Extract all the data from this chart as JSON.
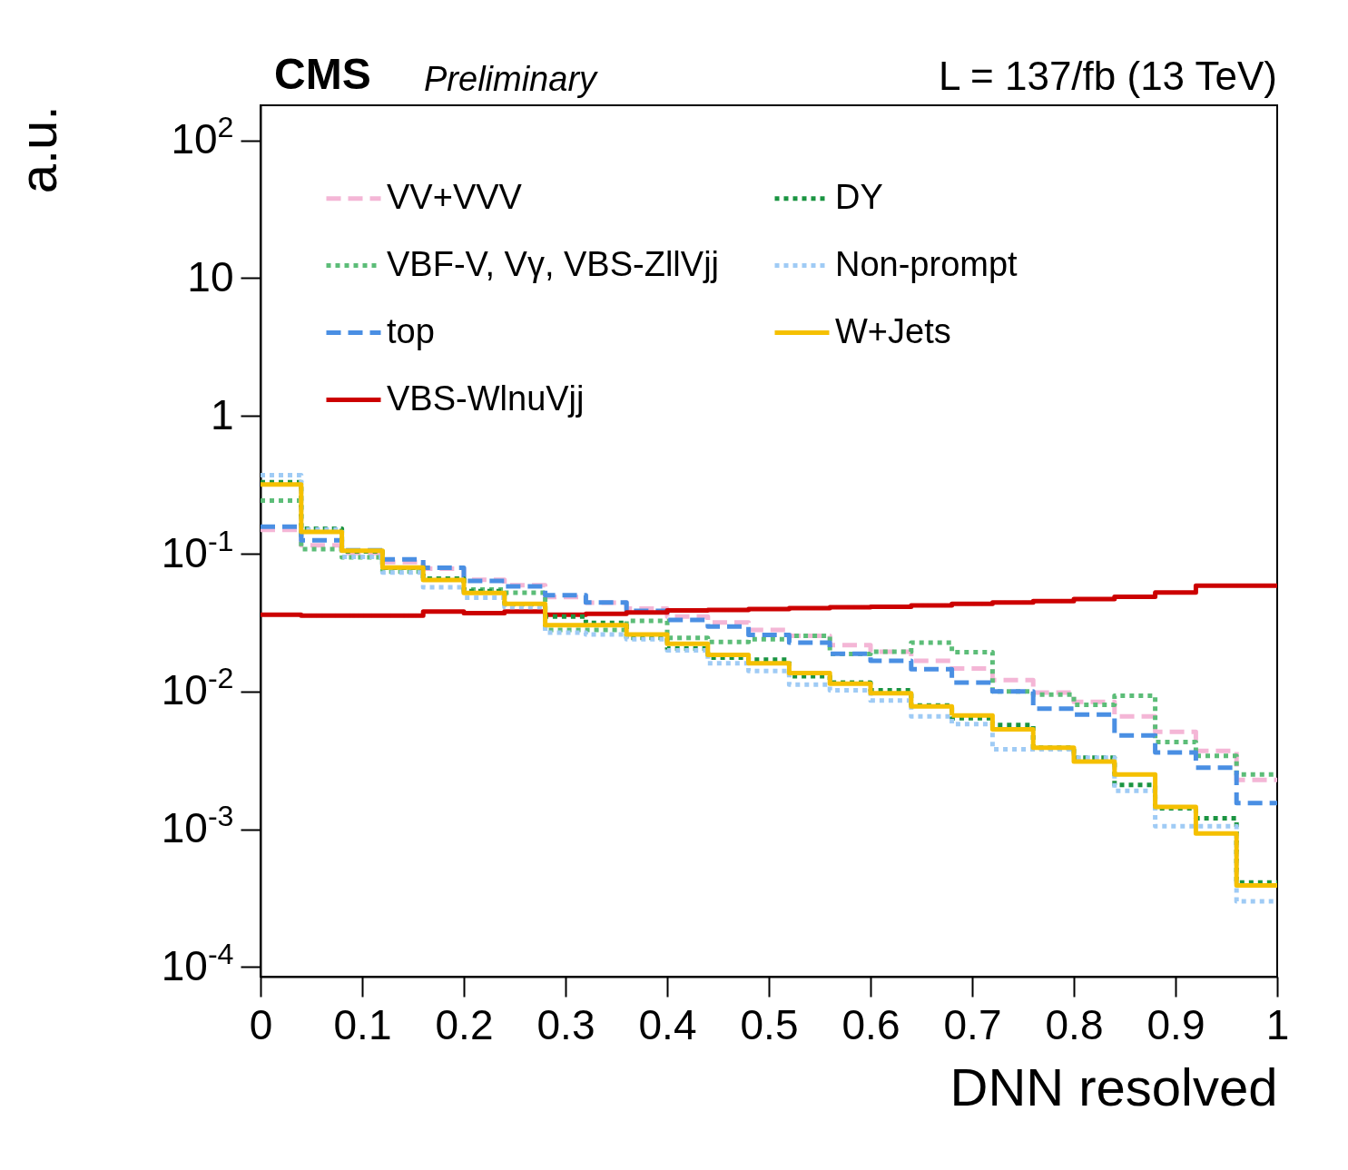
{
  "chart_data": {
    "type": "histogram",
    "title": "CMS",
    "subtitle": "Preliminary",
    "annotations": [
      "L = 137/fb (13 TeV)"
    ],
    "xlabel": "DNN resolved",
    "ylabel": "a.u.",
    "bins": [
      0,
      0.04,
      0.08,
      0.12,
      0.16,
      0.2,
      0.24,
      0.28,
      0.32,
      0.36,
      0.4,
      0.44,
      0.48,
      0.52,
      0.56,
      0.6,
      0.64,
      0.68,
      0.72,
      0.76,
      0.8,
      0.84,
      0.88,
      0.92,
      0.96,
      1
    ],
    "series": [
      {
        "name": "VV+VVV",
        "color": "#f4b6d6",
        "line_style": "dashed",
        "values": [
          0.149,
          0.115,
          0.101,
          0.087,
          0.078,
          0.0646,
          0.059,
          0.0485,
          0.044,
          0.04,
          0.035,
          0.0317,
          0.028,
          0.0253,
          0.0217,
          0.0194,
          0.0167,
          0.0147,
          0.0121,
          0.0098,
          0.0084,
          0.0066,
          0.0051,
          0.0037,
          0.00228
        ]
      },
      {
        "name": "VBF-V, Vγ, VBS-ZllVjj",
        "color": "#5cbd78",
        "line_style": "dotted",
        "values": [
          0.243,
          0.108,
          0.094,
          0.074,
          0.066,
          0.055,
          0.052,
          0.028,
          0.028,
          0.0325,
          0.0245,
          0.0229,
          0.0239,
          0.0253,
          0.0187,
          0.0194,
          0.0226,
          0.0193,
          0.01,
          0.0095,
          0.008,
          0.0093,
          0.0043,
          0.0034,
          0.0025
        ]
      },
      {
        "name": "top",
        "color": "#4a8fe3",
        "line_style": "dashed",
        "values": [
          0.157,
          0.125,
          0.106,
          0.091,
          0.079,
          0.0635,
          0.058,
          0.05,
          0.0443,
          0.0385,
          0.033,
          0.0296,
          0.0257,
          0.0226,
          0.0188,
          0.0167,
          0.0145,
          0.0116,
          0.01,
          0.0075,
          0.0068,
          0.0048,
          0.0036,
          0.0028,
          0.00155
        ]
      },
      {
        "name": "VBS-WlnuVjj",
        "color": "#cc0000",
        "line_style": "solid",
        "values": [
          0.036,
          0.0355,
          0.0355,
          0.0355,
          0.038,
          0.037,
          0.038,
          0.036,
          0.0366,
          0.0375,
          0.0387,
          0.0391,
          0.0397,
          0.0403,
          0.0408,
          0.0412,
          0.0422,
          0.0432,
          0.0443,
          0.0453,
          0.0469,
          0.0486,
          0.0522,
          0.0587,
          0.0587
        ]
      },
      {
        "name": "DY",
        "color": "#1a9441",
        "line_style": "dotted",
        "values": [
          0.331,
          0.152,
          0.104,
          0.079,
          0.066,
          0.0535,
          0.043,
          0.035,
          0.0314,
          0.0245,
          0.0205,
          0.0176,
          0.017,
          0.0129,
          0.0116,
          0.0102,
          0.0079,
          0.0064,
          0.0057,
          0.0039,
          0.0033,
          0.0021,
          0.00142,
          0.0012,
          0.00041
        ]
      },
      {
        "name": "Non-prompt",
        "color": "#9fcbf5",
        "line_style": "dotted",
        "values": [
          0.371,
          0.15,
          0.095,
          0.073,
          0.057,
          0.048,
          0.041,
          0.0267,
          0.0259,
          0.0239,
          0.0199,
          0.016,
          0.0141,
          0.0112,
          0.0102,
          0.0086,
          0.0066,
          0.0058,
          0.0038,
          0.0038,
          0.0033,
          0.0019,
          0.00105,
          0.00105,
          0.0003
        ]
      },
      {
        "name": "W+Jets",
        "color": "#f5c000",
        "line_style": "solid",
        "values": [
          0.318,
          0.144,
          0.105,
          0.0794,
          0.0643,
          0.0519,
          0.0432,
          0.0303,
          0.0303,
          0.0259,
          0.0222,
          0.0184,
          0.016,
          0.0136,
          0.0114,
          0.0097,
          0.0078,
          0.0067,
          0.0053,
          0.0039,
          0.0031,
          0.0025,
          0.00145,
          0.00093,
          0.00039
        ]
      }
    ],
    "xlim": [
      0,
      1
    ],
    "xticks": [
      0,
      0.1,
      0.2,
      0.3,
      0.4,
      0.5,
      0.6,
      0.7,
      0.8,
      0.9,
      1
    ],
    "log": true,
    "ylim": [
      8.5e-05,
      180
    ],
    "yticks": [
      {
        "value": 0.0001,
        "label": "10$^{-4}$"
      },
      {
        "value": 0.001,
        "label": "10$^{-3}$"
      },
      {
        "value": 0.01,
        "label": "10$^{-2}$"
      },
      {
        "value": 0.1,
        "label": "10$^{-1}$"
      },
      1,
      10,
      {
        "value": 100,
        "label": "10$^{2}$"
      }
    ],
    "grid": false,
    "legend": "top left"
  }
}
